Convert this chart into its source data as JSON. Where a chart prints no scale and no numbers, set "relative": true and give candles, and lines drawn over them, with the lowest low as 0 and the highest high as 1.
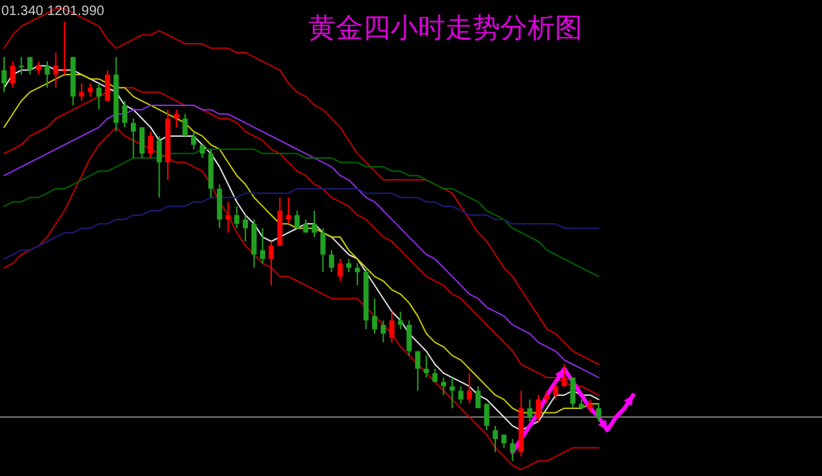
{
  "chart_data": {
    "type": "candlestick",
    "title": "黄金四小时走势分析图",
    "annotations": [
      "01.340 1201.990"
    ],
    "relative": true,
    "categories": [
      null,
      null,
      null,
      null,
      null,
      null,
      null,
      null,
      null,
      null,
      null,
      null,
      null,
      null,
      null,
      null,
      null,
      null,
      null,
      null,
      null,
      null,
      null,
      null,
      null,
      null,
      null,
      null,
      null,
      null,
      null,
      null,
      null,
      null,
      null,
      null,
      null,
      null,
      null,
      null,
      null,
      null,
      null,
      null,
      null,
      null,
      null,
      null,
      null,
      null,
      null,
      null,
      null,
      null,
      null,
      null,
      null,
      null,
      null,
      null,
      null,
      null,
      null,
      null,
      null,
      null,
      null,
      null,
      null,
      null,
      null,
      null,
      null,
      null,
      null
    ],
    "ohlc": [
      [
        0.89,
        0.92,
        0.84,
        0.86
      ],
      [
        0.86,
        0.91,
        0.85,
        0.9
      ],
      [
        0.9,
        0.92,
        0.88,
        0.9
      ],
      [
        0.92,
        0.92,
        0.88,
        0.89
      ],
      [
        0.89,
        0.91,
        0.88,
        0.9
      ],
      [
        0.9,
        0.91,
        0.85,
        0.88
      ],
      [
        0.88,
        0.93,
        0.85,
        0.9
      ],
      [
        0.89,
        1.0,
        0.88,
        0.89
      ],
      [
        0.92,
        0.92,
        0.81,
        0.83
      ],
      [
        0.83,
        0.86,
        0.82,
        0.84
      ],
      [
        0.84,
        0.86,
        0.83,
        0.85
      ],
      [
        0.85,
        0.86,
        0.8,
        0.83
      ],
      [
        0.82,
        0.89,
        0.82,
        0.88
      ],
      [
        0.88,
        0.92,
        0.75,
        0.77
      ],
      [
        0.81,
        0.82,
        0.76,
        0.77
      ],
      [
        0.77,
        0.78,
        0.69,
        0.75
      ],
      [
        0.76,
        0.76,
        0.69,
        0.7
      ],
      [
        0.7,
        0.75,
        0.69,
        0.74
      ],
      [
        0.73,
        0.74,
        0.6,
        0.68
      ],
      [
        0.68,
        0.8,
        0.64,
        0.78
      ],
      [
        0.78,
        0.8,
        0.76,
        0.79
      ],
      [
        0.78,
        0.79,
        0.74,
        0.74
      ],
      [
        0.74,
        0.75,
        0.71,
        0.72
      ],
      [
        0.72,
        0.72,
        0.69,
        0.7
      ],
      [
        0.7,
        0.71,
        0.6,
        0.62
      ],
      [
        0.62,
        0.63,
        0.53,
        0.55
      ],
      [
        0.55,
        0.59,
        0.52,
        0.56
      ],
      [
        0.56,
        0.58,
        0.53,
        0.54
      ],
      [
        0.55,
        0.56,
        0.5,
        0.53
      ],
      [
        0.54,
        0.55,
        0.44,
        0.47
      ],
      [
        0.48,
        0.53,
        0.45,
        0.46
      ],
      [
        0.46,
        0.5,
        0.4,
        0.49
      ],
      [
        0.49,
        0.6,
        0.49,
        0.57
      ],
      [
        0.55,
        0.6,
        0.54,
        0.56
      ],
      [
        0.56,
        0.57,
        0.53,
        0.53
      ],
      [
        0.54,
        0.55,
        0.52,
        0.52
      ],
      [
        0.54,
        0.57,
        0.51,
        0.52
      ],
      [
        0.52,
        0.53,
        0.43,
        0.47
      ],
      [
        0.47,
        0.48,
        0.43,
        0.44
      ],
      [
        0.42,
        0.46,
        0.41,
        0.45
      ],
      [
        0.45,
        0.46,
        0.43,
        0.44
      ],
      [
        0.44,
        0.45,
        0.4,
        0.43
      ],
      [
        0.43,
        0.44,
        0.3,
        0.32
      ],
      [
        0.33,
        0.37,
        0.29,
        0.3
      ],
      [
        0.31,
        0.32,
        0.27,
        0.29
      ],
      [
        0.28,
        0.34,
        0.27,
        0.32
      ],
      [
        0.32,
        0.34,
        0.3,
        0.31
      ],
      [
        0.31,
        0.32,
        0.24,
        0.25
      ],
      [
        0.25,
        0.25,
        0.16,
        0.21
      ],
      [
        0.21,
        0.24,
        0.19,
        0.2
      ],
      [
        0.2,
        0.21,
        0.18,
        0.18
      ],
      [
        0.18,
        0.19,
        0.15,
        0.17
      ],
      [
        0.17,
        0.19,
        0.12,
        0.16
      ],
      [
        0.16,
        0.17,
        0.13,
        0.14
      ],
      [
        0.14,
        0.2,
        0.13,
        0.16
      ],
      [
        0.16,
        0.17,
        0.12,
        0.12
      ],
      [
        0.13,
        0.13,
        0.07,
        0.08
      ],
      [
        0.07,
        0.08,
        0.02,
        0.05
      ],
      [
        0.06,
        0.06,
        0.03,
        0.04
      ],
      [
        0.04,
        0.05,
        0.0,
        0.02
      ],
      [
        0.02,
        0.16,
        0.01,
        0.12
      ],
      [
        0.12,
        0.14,
        0.09,
        0.1
      ],
      [
        0.1,
        0.15,
        0.09,
        0.14
      ],
      [
        0.14,
        0.16,
        0.13,
        0.15
      ],
      [
        0.15,
        0.18,
        0.14,
        0.17
      ],
      [
        0.17,
        0.22,
        0.17,
        0.19
      ],
      [
        0.19,
        0.19,
        0.12,
        0.13
      ],
      [
        0.13,
        0.14,
        0.12,
        0.12
      ],
      [
        0.12,
        0.14,
        0.11,
        0.13
      ],
      [
        0.12,
        0.13,
        0.09,
        0.1
      ],
      null,
      null,
      null,
      null,
      null
    ],
    "colors": [
      "#22a022",
      "#ff0000",
      "#22a022",
      "#22a022",
      "#ff0000",
      "#22a022",
      "#ff0000",
      "#ff0000",
      "#22a022",
      "#ff0000",
      "#ff0000",
      "#22a022",
      "#ff0000",
      "#22a022",
      "#22a022",
      "#22a022",
      "#22a022",
      "#ff0000",
      "#22a022",
      "#ff0000",
      "#ff0000",
      "#22a022",
      "#22a022",
      "#22a022",
      "#22a022",
      "#22a022",
      "#ff0000",
      "#22a022",
      "#22a022",
      "#22a022",
      "#22a022",
      "#ff0000",
      "#ff0000",
      "#ff0000",
      "#22a022",
      "#22a022",
      "#22a022",
      "#22a022",
      "#22a022",
      "#ff0000",
      "#22a022",
      "#22a022",
      "#22a022",
      "#22a022",
      "#22a022",
      "#ff0000",
      "#22a022",
      "#22a022",
      "#22a022",
      "#22a022",
      "#22a022",
      "#22a022",
      "#22a022",
      "#22a022",
      "#ff0000",
      "#22a022",
      "#22a022",
      "#22a022",
      "#22a022",
      "#22a022",
      "#ff0000",
      "#22a022",
      "#ff0000",
      "#ff0000",
      "#ff0000",
      "#ff0000",
      "#22a022",
      "#22a022",
      "#ff0000",
      "#22a022",
      null,
      null,
      null,
      null,
      null
    ],
    "series": [
      {
        "type": "line",
        "color": "#c00000",
        "values": [
          0.94,
          0.97,
          0.99,
          1.0,
          1.01,
          1.02,
          1.03,
          1.03,
          1.02,
          1.01,
          1.0,
          0.99,
          0.96,
          0.94,
          0.95,
          0.96,
          0.97,
          0.97,
          0.98,
          0.97,
          0.96,
          0.95,
          0.95,
          0.95,
          0.94,
          0.94,
          0.94,
          0.93,
          0.93,
          0.92,
          0.91,
          0.9,
          0.89,
          0.86,
          0.84,
          0.83,
          0.81,
          0.8,
          0.78,
          0.76,
          0.73,
          0.7,
          0.68,
          0.66,
          0.64,
          0.64,
          0.64,
          0.64,
          0.64,
          0.64,
          0.63,
          0.62,
          0.61,
          0.58,
          0.55,
          0.52,
          0.5,
          0.47,
          0.44,
          0.42,
          0.39,
          0.36,
          0.33,
          0.3,
          0.29,
          0.27,
          0.25,
          0.24,
          0.23,
          0.22,
          null,
          null,
          null,
          null,
          null
        ]
      },
      {
        "type": "line",
        "color": "#c00000",
        "values": [
          0.7,
          0.71,
          0.72,
          0.74,
          0.75,
          0.76,
          0.78,
          0.79,
          0.8,
          0.81,
          0.82,
          0.83,
          0.84,
          0.85,
          0.85,
          0.85,
          0.84,
          0.84,
          0.84,
          0.83,
          0.82,
          0.81,
          0.81,
          0.8,
          0.79,
          0.78,
          0.78,
          0.77,
          0.75,
          0.74,
          0.73,
          0.71,
          0.7,
          0.68,
          0.66,
          0.65,
          0.63,
          0.62,
          0.6,
          0.59,
          0.58,
          0.56,
          0.55,
          0.53,
          0.51,
          0.5,
          0.48,
          0.46,
          0.44,
          0.42,
          0.41,
          0.4,
          0.38,
          0.37,
          0.35,
          0.33,
          0.31,
          0.29,
          0.27,
          0.25,
          0.22,
          0.21,
          0.2,
          0.19,
          0.19,
          0.18,
          0.17,
          0.17,
          0.16,
          0.15,
          null,
          null,
          null,
          null,
          null
        ]
      },
      {
        "type": "line",
        "color": "#c00000",
        "values": [
          0.44,
          0.45,
          0.47,
          0.48,
          0.49,
          0.51,
          0.54,
          0.57,
          0.61,
          0.65,
          0.69,
          0.72,
          0.74,
          0.76,
          0.74,
          0.73,
          0.72,
          0.71,
          0.7,
          0.69,
          0.68,
          0.68,
          0.67,
          0.66,
          0.63,
          0.59,
          0.56,
          0.52,
          0.49,
          0.47,
          0.45,
          0.44,
          0.42,
          0.42,
          0.41,
          0.4,
          0.39,
          0.38,
          0.37,
          0.37,
          0.37,
          0.37,
          0.35,
          0.33,
          0.31,
          0.29,
          0.26,
          0.24,
          0.22,
          0.2,
          0.18,
          0.16,
          0.14,
          0.12,
          0.1,
          0.08,
          0.06,
          0.03,
          0.01,
          -0.01,
          -0.02,
          -0.01,
          0.0,
          0.0,
          0.01,
          0.02,
          0.03,
          0.03,
          0.03,
          0.03,
          null,
          null,
          null,
          null,
          null
        ]
      },
      {
        "type": "line",
        "color": "#e0e0e0",
        "values": [
          0.85,
          0.88,
          0.89,
          0.89,
          0.9,
          0.9,
          0.89,
          0.89,
          0.89,
          0.88,
          0.87,
          0.86,
          0.85,
          0.84,
          0.81,
          0.8,
          0.78,
          0.76,
          0.73,
          0.74,
          0.74,
          0.74,
          0.74,
          0.72,
          0.7,
          0.67,
          0.63,
          0.59,
          0.56,
          0.54,
          0.51,
          0.5,
          0.51,
          0.52,
          0.53,
          0.54,
          0.54,
          0.52,
          0.51,
          0.49,
          0.47,
          0.46,
          0.43,
          0.4,
          0.37,
          0.34,
          0.32,
          0.29,
          0.27,
          0.25,
          0.22,
          0.2,
          0.19,
          0.18,
          0.17,
          0.15,
          0.14,
          0.12,
          0.1,
          0.08,
          0.07,
          0.08,
          0.09,
          0.12,
          0.15,
          0.15,
          0.16,
          0.15,
          0.15,
          0.14,
          null,
          null,
          null,
          null,
          null
        ]
      },
      {
        "type": "line",
        "color": "#c8c800",
        "values": [
          0.76,
          0.79,
          0.82,
          0.84,
          0.85,
          0.86,
          0.87,
          0.88,
          0.88,
          0.88,
          0.87,
          0.87,
          0.86,
          0.85,
          0.85,
          0.83,
          0.82,
          0.81,
          0.8,
          0.79,
          0.78,
          0.77,
          0.75,
          0.74,
          0.72,
          0.71,
          0.68,
          0.65,
          0.63,
          0.6,
          0.58,
          0.56,
          0.54,
          0.54,
          0.53,
          0.53,
          0.53,
          0.52,
          0.51,
          0.51,
          0.48,
          0.46,
          0.44,
          0.42,
          0.41,
          0.39,
          0.38,
          0.36,
          0.33,
          0.29,
          0.27,
          0.26,
          0.24,
          0.23,
          0.21,
          0.19,
          0.17,
          0.15,
          0.14,
          0.12,
          0.11,
          0.11,
          0.11,
          0.11,
          0.11,
          0.12,
          0.12,
          0.12,
          0.13,
          0.13,
          null,
          null,
          null,
          null,
          null
        ]
      },
      {
        "type": "line",
        "color": "#8a2be2",
        "values": [
          0.65,
          0.66,
          0.67,
          0.68,
          0.69,
          0.7,
          0.71,
          0.72,
          0.73,
          0.74,
          0.75,
          0.76,
          0.78,
          0.79,
          0.79,
          0.8,
          0.8,
          0.81,
          0.81,
          0.81,
          0.81,
          0.81,
          0.81,
          0.8,
          0.8,
          0.79,
          0.79,
          0.78,
          0.77,
          0.76,
          0.75,
          0.74,
          0.73,
          0.72,
          0.71,
          0.7,
          0.69,
          0.68,
          0.67,
          0.65,
          0.64,
          0.62,
          0.6,
          0.59,
          0.57,
          0.55,
          0.53,
          0.51,
          0.49,
          0.47,
          0.46,
          0.44,
          0.42,
          0.4,
          0.38,
          0.37,
          0.35,
          0.34,
          0.33,
          0.31,
          0.3,
          0.29,
          0.27,
          0.26,
          0.25,
          0.23,
          0.22,
          0.21,
          0.2,
          0.19,
          null,
          null,
          null,
          null,
          null
        ]
      },
      {
        "type": "line",
        "color": "#006400",
        "values": [
          0.58,
          0.59,
          0.59,
          0.6,
          0.6,
          0.61,
          0.62,
          0.62,
          0.63,
          0.64,
          0.65,
          0.66,
          0.66,
          0.67,
          0.68,
          0.69,
          0.69,
          0.69,
          0.69,
          0.7,
          0.7,
          0.7,
          0.7,
          0.71,
          0.71,
          0.71,
          0.71,
          0.71,
          0.71,
          0.71,
          0.7,
          0.7,
          0.7,
          0.7,
          0.7,
          0.69,
          0.69,
          0.69,
          0.69,
          0.68,
          0.68,
          0.68,
          0.67,
          0.67,
          0.67,
          0.66,
          0.66,
          0.65,
          0.65,
          0.64,
          0.63,
          0.62,
          0.62,
          0.61,
          0.6,
          0.59,
          0.57,
          0.56,
          0.55,
          0.53,
          0.52,
          0.51,
          0.5,
          0.48,
          0.47,
          0.46,
          0.45,
          0.44,
          0.43,
          0.42,
          null,
          null,
          null,
          null,
          null
        ]
      },
      {
        "type": "line",
        "color": "#1c1c78",
        "values": [
          0.46,
          0.47,
          0.48,
          0.48,
          0.49,
          0.5,
          0.51,
          0.52,
          0.52,
          0.53,
          0.53,
          0.54,
          0.54,
          0.55,
          0.55,
          0.56,
          0.56,
          0.57,
          0.57,
          0.58,
          0.58,
          0.58,
          0.59,
          0.59,
          0.6,
          0.6,
          0.6,
          0.6,
          0.61,
          0.61,
          0.61,
          0.61,
          0.61,
          0.61,
          0.62,
          0.62,
          0.62,
          0.62,
          0.62,
          0.62,
          0.62,
          0.62,
          0.61,
          0.61,
          0.61,
          0.61,
          0.6,
          0.6,
          0.6,
          0.59,
          0.59,
          0.58,
          0.58,
          0.57,
          0.56,
          0.56,
          0.56,
          0.55,
          0.55,
          0.54,
          0.54,
          0.54,
          0.54,
          0.54,
          0.54,
          0.53,
          0.53,
          0.53,
          0.53,
          0.53,
          null,
          null,
          null,
          null,
          null
        ]
      },
      {
        "type": "line",
        "color": "#ff00ff",
        "values": [
          null,
          null,
          null,
          null,
          null,
          null,
          null,
          null,
          null,
          null,
          null,
          null,
          null,
          null,
          null,
          null,
          null,
          null,
          null,
          null,
          null,
          null,
          null,
          null,
          null,
          null,
          null,
          null,
          null,
          null,
          null,
          null,
          null,
          null,
          null,
          null,
          null,
          null,
          null,
          null,
          null,
          null,
          null,
          null,
          null,
          null,
          null,
          null,
          null,
          null,
          null,
          null,
          null,
          null,
          null,
          null,
          null,
          null,
          null,
          0.02,
          0.05,
          0.08,
          0.11,
          0.15,
          0.18,
          0.21,
          0.18,
          0.15,
          0.12,
          0.1,
          0.07,
          0.1,
          0.12,
          0.15,
          null
        ]
      }
    ],
    "ref_lines": [
      {
        "axis": "y",
        "value": 0.1,
        "color": "#808080"
      }
    ]
  }
}
